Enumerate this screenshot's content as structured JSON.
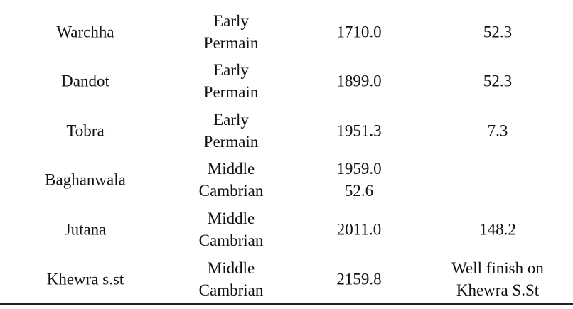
{
  "table": {
    "rows": [
      [
        [
          "Warchha"
        ],
        [
          "Early",
          "Permain"
        ],
        [
          "1710.0"
        ],
        [
          "52.3"
        ]
      ],
      [
        [
          "Dandot"
        ],
        [
          "Early",
          "Permain"
        ],
        [
          "1899.0"
        ],
        [
          "52.3"
        ]
      ],
      [
        [
          "Tobra"
        ],
        [
          "Early",
          "Permain"
        ],
        [
          "1951.3"
        ],
        [
          "7.3"
        ]
      ],
      [
        [
          "Baghanwala"
        ],
        [
          "Middle",
          "Cambrian"
        ],
        [
          "1959.0",
          "52.6"
        ],
        []
      ],
      [
        [
          "Jutana"
        ],
        [
          "Middle",
          "Cambrian"
        ],
        [
          "2011.0"
        ],
        [
          "148.2"
        ]
      ],
      [
        [
          "Khewra s.st"
        ],
        [
          "Middle",
          "Cambrian"
        ],
        [
          "2159.8"
        ],
        [
          "Well finish on",
          "Khewra S.St"
        ]
      ]
    ]
  }
}
